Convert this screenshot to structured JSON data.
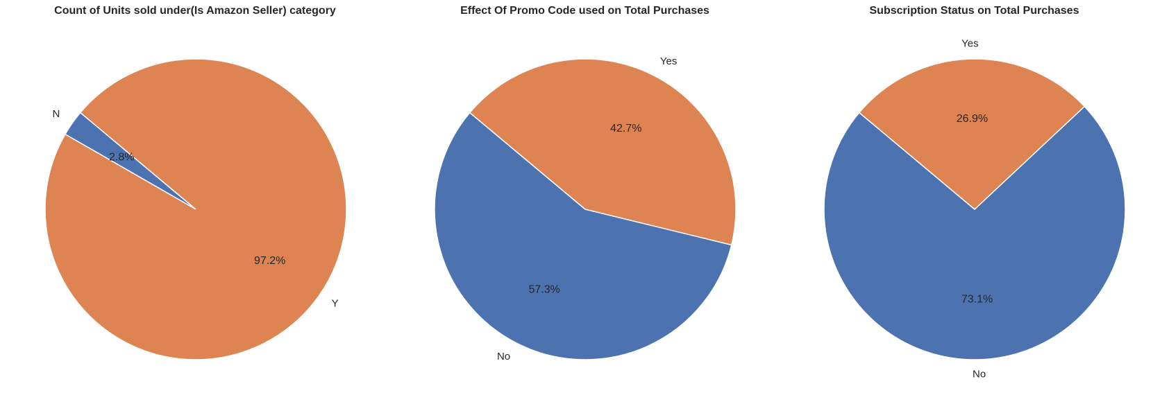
{
  "chart_data": [
    {
      "type": "pie",
      "title": "Count of Units sold under(Is Amazon Seller) category",
      "slices": [
        {
          "label": "N",
          "value": 2.8,
          "pct_label": "2.8%",
          "color": "#4c72b0"
        },
        {
          "label": "Y",
          "value": 97.2,
          "pct_label": "97.2%",
          "color": "#dd8452"
        }
      ],
      "start_angle": 140
    },
    {
      "type": "pie",
      "title": "Effect Of Promo Code used on Total Purchases",
      "slices": [
        {
          "label": "No",
          "value": 57.3,
          "pct_label": "57.3%",
          "color": "#4c72b0"
        },
        {
          "label": "Yes",
          "value": 42.7,
          "pct_label": "42.7%",
          "color": "#dd8452"
        }
      ],
      "start_angle": 140
    },
    {
      "type": "pie",
      "title": "Subscription Status on Total Purchases",
      "slices": [
        {
          "label": "No",
          "value": 73.1,
          "pct_label": "73.1%",
          "color": "#4c72b0"
        },
        {
          "label": "Yes",
          "value": 26.9,
          "pct_label": "26.9%",
          "color": "#dd8452"
        }
      ],
      "start_angle": 140
    }
  ]
}
